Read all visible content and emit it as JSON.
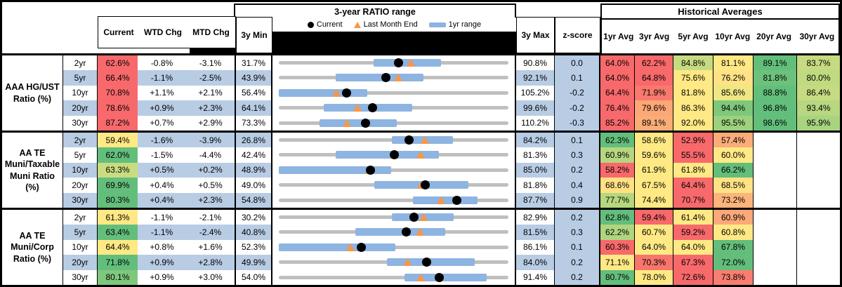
{
  "header": {
    "range_title": "3-year RATIO range",
    "hist_title": "Historical Averages",
    "current": "Current",
    "wtd": "WTD Chg",
    "mtd": "MTD Chg",
    "min": "3y Min",
    "max": "3y Max",
    "z": "z-score",
    "avg_cols": [
      "1yr Avg",
      "3yr Avg",
      "5yr Avg",
      "10yr Avg",
      "20yr Avg",
      "30yr Avg"
    ],
    "legend_current": "Current",
    "legend_lme": "Last Month End",
    "legend_range": "1yr range"
  },
  "colors": {
    "row_shade": "#B8CCE4",
    "bar_1yr": "#8EB4E1",
    "track_3y": "#BFBFBF",
    "marker_current": "#000000",
    "marker_last_month": "#F79646",
    "scale_red": "#F8696B",
    "scale_yellow": "#FFE984",
    "scale_green": "#63BE7B"
  },
  "groups": [
    {
      "label_lines": [
        "AAA HG/UST",
        "Ratio (%)"
      ],
      "rows": [
        {
          "tenor": "2yr",
          "current": "62.6%",
          "cbg": "#F8696B",
          "wtd": "-0.8%",
          "mtd": "-3.1%",
          "min": "31.7%",
          "max": "90.8%",
          "z": "0.0",
          "c": {
            "mn": 31.7,
            "mx": 90.8,
            "cur": 62.6,
            "lme": 65.7,
            "lo": 56.1,
            "hi": 73.4
          },
          "avgs": [
            [
              "64.0%",
              "#F8696B"
            ],
            [
              "62.2%",
              "#F8696B"
            ],
            [
              "84.8%",
              "#C6DB81"
            ],
            [
              "81.1%",
              "#FFE984"
            ],
            [
              "89.1%",
              "#63BE7B"
            ],
            [
              "83.7%",
              "#C6DB81"
            ]
          ]
        },
        {
          "tenor": "5yr",
          "current": "66.4%",
          "cbg": "#F8696B",
          "wtd": "-1.1%",
          "mtd": "-2.5%",
          "min": "43.9%",
          "max": "92.1%",
          "z": "0.1",
          "c": {
            "mn": 43.9,
            "mx": 92.1,
            "cur": 66.4,
            "lme": 68.9,
            "lo": 55.8,
            "hi": 74.2
          },
          "avgs": [
            [
              "64.0%",
              "#F8696B"
            ],
            [
              "64.8%",
              "#F8696B"
            ],
            [
              "75.6%",
              "#FFE984"
            ],
            [
              "76.2%",
              "#FFE285"
            ],
            [
              "81.8%",
              "#6CC27C"
            ],
            [
              "80.0%",
              "#C0DA80"
            ]
          ]
        },
        {
          "tenor": "10yr",
          "current": "70.8%",
          "cbg": "#F8696B",
          "wtd": "+1.1%",
          "mtd": "+2.1%",
          "min": "56.4%",
          "max": "105.2%",
          "z": "-0.2",
          "c": {
            "mn": 56.4,
            "mx": 105.2,
            "cur": 70.8,
            "lme": 68.7,
            "lo": 56.4,
            "hi": 75.2
          },
          "avgs": [
            [
              "64.4%",
              "#F8696B"
            ],
            [
              "71.9%",
              "#F9796E"
            ],
            [
              "81.8%",
              "#FFE984"
            ],
            [
              "85.6%",
              "#EFE783"
            ],
            [
              "88.8%",
              "#63BE7B"
            ],
            [
              "86.4%",
              "#C6DB81"
            ]
          ]
        },
        {
          "tenor": "20yr",
          "current": "78.6%",
          "cbg": "#F8696B",
          "wtd": "+0.9%",
          "mtd": "+2.3%",
          "min": "64.1%",
          "max": "99.6%",
          "z": "-0.2",
          "c": {
            "mn": 64.1,
            "mx": 99.6,
            "cur": 78.6,
            "lme": 76.3,
            "lo": 71.0,
            "hi": 84.7
          },
          "avgs": [
            [
              "76.4%",
              "#F8696B"
            ],
            [
              "79.6%",
              "#FBA776"
            ],
            [
              "86.3%",
              "#FFE984"
            ],
            [
              "94.4%",
              "#7EC87C"
            ],
            [
              "96.8%",
              "#63BE7B"
            ],
            [
              "93.4%",
              "#B7D780"
            ]
          ]
        },
        {
          "tenor": "30yr",
          "current": "87.2%",
          "cbg": "#F8696B",
          "wtd": "+0.7%",
          "mtd": "+2.9%",
          "min": "73.3%",
          "max": "110.2%",
          "z": "-0.3",
          "c": {
            "mn": 73.3,
            "mx": 110.2,
            "cur": 87.2,
            "lme": 84.3,
            "lo": 79.8,
            "hi": 92.3
          },
          "avgs": [
            [
              "85.2%",
              "#F8696B"
            ],
            [
              "89.1%",
              "#FBAD78"
            ],
            [
              "92.0%",
              "#FFE984"
            ],
            [
              "95.5%",
              "#9DD17E"
            ],
            [
              "98.6%",
              "#63BE7B"
            ],
            [
              "95.9%",
              "#A9D47F"
            ]
          ]
        }
      ]
    },
    {
      "label_lines": [
        "AA TE",
        "Muni/Taxable",
        "Muni Ratio",
        "(%)"
      ],
      "rows": [
        {
          "tenor": "2yr",
          "current": "59.4%",
          "cbg": "#FFE984",
          "wtd": "-1.6%",
          "mtd": "-3.9%",
          "min": "26.8%",
          "max": "84.2%",
          "z": "0.1",
          "c": {
            "mn": 26.8,
            "mx": 84.2,
            "cur": 59.4,
            "lme": 63.3,
            "lo": 55.0,
            "hi": 70.4
          },
          "avgs": [
            [
              "62.3%",
              "#63BE7B"
            ],
            [
              "58.6%",
              "#FFE984"
            ],
            [
              "52.9%",
              "#F8696B"
            ],
            [
              "57.4%",
              "#FCAC79"
            ],
            [
              "",
              ""
            ],
            [
              "",
              ""
            ]
          ]
        },
        {
          "tenor": "5yr",
          "current": "62.0%",
          "cbg": "#63BE7B",
          "wtd": "-1.5%",
          "mtd": "-4.4%",
          "min": "42.4%",
          "max": "81.3%",
          "z": "0.3",
          "c": {
            "mn": 42.4,
            "mx": 81.3,
            "cur": 62.0,
            "lme": 66.4,
            "lo": 52.0,
            "hi": 69.5
          },
          "avgs": [
            [
              "60.9%",
              "#B5D77F"
            ],
            [
              "59.6%",
              "#FFE984"
            ],
            [
              "55.5%",
              "#F8696B"
            ],
            [
              "60.0%",
              "#FFE984"
            ],
            [
              "",
              ""
            ],
            [
              "",
              ""
            ]
          ]
        },
        {
          "tenor": "10yr",
          "current": "63.3%",
          "cbg": "#C9DC81",
          "wtd": "+0.5%",
          "mtd": "+0.2%",
          "min": "48.9%",
          "max": "85.0%",
          "z": "0.2",
          "c": {
            "mn": 48.9,
            "mx": 85.0,
            "cur": 63.3,
            "lme": 63.1,
            "lo": 48.9,
            "hi": 66.6
          },
          "avgs": [
            [
              "58.2%",
              "#F8696B"
            ],
            [
              "61.9%",
              "#FFE984"
            ],
            [
              "61.8%",
              "#FFE984"
            ],
            [
              "66.2%",
              "#63BE7B"
            ],
            [
              "",
              ""
            ],
            [
              "",
              ""
            ]
          ]
        },
        {
          "tenor": "20yr",
          "current": "69.9%",
          "cbg": "#63BE7B",
          "wtd": "+0.4%",
          "mtd": "+0.5%",
          "min": "49.0%",
          "max": "81.8%",
          "z": "0.4",
          "c": {
            "mn": 49.0,
            "mx": 81.8,
            "cur": 69.9,
            "lme": 69.4,
            "lo": 62.6,
            "hi": 76.1
          },
          "avgs": [
            [
              "68.6%",
              "#FFE183"
            ],
            [
              "67.5%",
              "#FFE984"
            ],
            [
              "64.4%",
              "#F8696B"
            ],
            [
              "68.5%",
              "#FFE285"
            ],
            [
              "",
              ""
            ],
            [
              "",
              ""
            ]
          ]
        },
        {
          "tenor": "30yr",
          "current": "80.3%",
          "cbg": "#63BE7B",
          "wtd": "+0.4%",
          "mtd": "+2.3%",
          "min": "54.8%",
          "max": "87.7%",
          "z": "0.9",
          "c": {
            "mn": 54.8,
            "mx": 87.7,
            "cur": 80.3,
            "lme": 78.0,
            "lo": 74.0,
            "hi": 83.3
          },
          "avgs": [
            [
              "77.7%",
              "#B5D77F"
            ],
            [
              "74.4%",
              "#FFE984"
            ],
            [
              "70.7%",
              "#F8696B"
            ],
            [
              "73.2%",
              "#FCB47A"
            ],
            [
              "",
              ""
            ],
            [
              "",
              ""
            ]
          ]
        }
      ]
    },
    {
      "label_lines": [
        "AA TE",
        "Muni/Corp",
        "Ratio (%)"
      ],
      "rows": [
        {
          "tenor": "2yr",
          "current": "61.3%",
          "cbg": "#FFE984",
          "wtd": "-1.1%",
          "mtd": "-2.1%",
          "min": "30.2%",
          "max": "82.9%",
          "z": "0.2",
          "c": {
            "mn": 30.2,
            "mx": 82.9,
            "cur": 61.3,
            "lme": 63.4,
            "lo": 56.2,
            "hi": 70.4
          },
          "avgs": [
            [
              "62.8%",
              "#63BE7B"
            ],
            [
              "59.4%",
              "#F8696B"
            ],
            [
              "61.4%",
              "#FFE984"
            ],
            [
              "60.9%",
              "#FCA878"
            ],
            [
              "",
              ""
            ],
            [
              "",
              ""
            ]
          ]
        },
        {
          "tenor": "5yr",
          "current": "63.4%",
          "cbg": "#63BE7B",
          "wtd": "-1.1%",
          "mtd": "-2.4%",
          "min": "40.8%",
          "max": "81.5%",
          "z": "0.3",
          "c": {
            "mn": 40.8,
            "mx": 81.5,
            "cur": 63.4,
            "lme": 65.8,
            "lo": 54.4,
            "hi": 70.3
          },
          "avgs": [
            [
              "62.2%",
              "#AFD57F"
            ],
            [
              "60.7%",
              "#FFE984"
            ],
            [
              "59.2%",
              "#F8696B"
            ],
            [
              "60.8%",
              "#FFE984"
            ],
            [
              "",
              ""
            ],
            [
              "",
              ""
            ]
          ]
        },
        {
          "tenor": "10yr",
          "current": "64.4%",
          "cbg": "#FFE984",
          "wtd": "+0.8%",
          "mtd": "+1.6%",
          "min": "52.3%",
          "max": "86.1%",
          "z": "0.1",
          "c": {
            "mn": 52.3,
            "mx": 86.1,
            "cur": 64.4,
            "lme": 62.8,
            "lo": 52.3,
            "hi": 69.5
          },
          "avgs": [
            [
              "60.3%",
              "#F8696B"
            ],
            [
              "64.0%",
              "#FFE984"
            ],
            [
              "64.0%",
              "#FFE984"
            ],
            [
              "67.8%",
              "#63BE7B"
            ],
            [
              "",
              ""
            ],
            [
              "",
              ""
            ]
          ]
        },
        {
          "tenor": "20yr",
          "current": "71.8%",
          "cbg": "#63BE7B",
          "wtd": "+0.9%",
          "mtd": "+2.8%",
          "min": "49.9%",
          "max": "84.0%",
          "z": "0.2",
          "c": {
            "mn": 49.9,
            "mx": 84.0,
            "cur": 71.8,
            "lme": 69.0,
            "lo": 66.0,
            "hi": 79.0
          },
          "avgs": [
            [
              "71.1%",
              "#FFE984"
            ],
            [
              "70.3%",
              "#F8756C"
            ],
            [
              "67.3%",
              "#F8696B"
            ],
            [
              "72.0%",
              "#63BE7B"
            ],
            [
              "",
              ""
            ],
            [
              "",
              ""
            ]
          ]
        },
        {
          "tenor": "30yr",
          "current": "80.1%",
          "cbg": "#7EC87C",
          "wtd": "+0.9%",
          "mtd": "+3.0%",
          "min": "54.0%",
          "max": "91.4%",
          "z": "0.2",
          "c": {
            "mn": 54.0,
            "mx": 91.4,
            "cur": 80.1,
            "lme": 77.1,
            "lo": 74.5,
            "hi": 87.9
          },
          "avgs": [
            [
              "80.7%",
              "#63BE7B"
            ],
            [
              "78.0%",
              "#FFE984"
            ],
            [
              "72.6%",
              "#F8696B"
            ],
            [
              "73.8%",
              "#F97E70"
            ],
            [
              "",
              ""
            ],
            [
              "",
              ""
            ]
          ]
        }
      ]
    }
  ],
  "chart_data": {
    "type": "scatter",
    "title": "3-year RATIO range",
    "legend_position": "top",
    "series": [
      {
        "name": "AAA HG/UST Ratio (%)",
        "x": [
          "2yr",
          "5yr",
          "10yr",
          "20yr",
          "30yr"
        ],
        "min3y": [
          31.7,
          43.9,
          56.4,
          64.1,
          73.3
        ],
        "max3y": [
          90.8,
          92.1,
          105.2,
          99.6,
          110.2
        ],
        "current": [
          62.6,
          66.4,
          70.8,
          78.6,
          87.2
        ],
        "last_month_end": [
          65.7,
          68.9,
          68.7,
          76.3,
          84.3
        ],
        "one_yr_low": [
          56.1,
          55.8,
          56.4,
          71.0,
          79.8
        ],
        "one_yr_high": [
          73.4,
          74.2,
          75.2,
          84.7,
          92.3
        ]
      },
      {
        "name": "AA TE Muni/Taxable Muni Ratio (%)",
        "x": [
          "2yr",
          "5yr",
          "10yr",
          "20yr",
          "30yr"
        ],
        "min3y": [
          26.8,
          42.4,
          48.9,
          49.0,
          54.8
        ],
        "max3y": [
          84.2,
          81.3,
          85.0,
          81.8,
          87.7
        ],
        "current": [
          59.4,
          62.0,
          63.3,
          69.9,
          80.3
        ],
        "last_month_end": [
          63.3,
          66.4,
          63.1,
          69.4,
          78.0
        ],
        "one_yr_low": [
          55.0,
          52.0,
          48.9,
          62.6,
          74.0
        ],
        "one_yr_high": [
          70.4,
          69.5,
          66.6,
          76.1,
          83.3
        ]
      },
      {
        "name": "AA TE Muni/Corp Ratio (%)",
        "x": [
          "2yr",
          "5yr",
          "10yr",
          "20yr",
          "30yr"
        ],
        "min3y": [
          30.2,
          40.8,
          52.3,
          49.9,
          54.0
        ],
        "max3y": [
          82.9,
          81.5,
          86.1,
          84.0,
          91.4
        ],
        "current": [
          61.3,
          63.4,
          64.4,
          71.8,
          80.1
        ],
        "last_month_end": [
          63.4,
          65.8,
          62.8,
          69.0,
          77.1
        ],
        "one_yr_low": [
          56.2,
          54.4,
          52.3,
          66.0,
          74.5
        ],
        "one_yr_high": [
          70.4,
          70.3,
          69.5,
          79.0,
          87.9
        ]
      }
    ]
  }
}
